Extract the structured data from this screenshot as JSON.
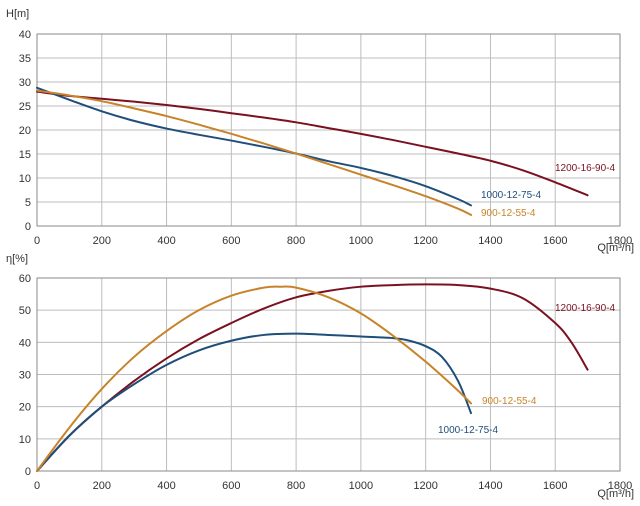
{
  "colors": {
    "1200-16-90-4": "#7a1020",
    "1000-12-75-4": "#1f4e79",
    "900-12-55-4": "#c8832a",
    "grid": "#bdbdbd"
  },
  "chart_data": [
    {
      "type": "line",
      "title": "",
      "xlabel": "Q[m³/h]",
      "ylabel": "H[m]",
      "xlim": [
        0,
        1800
      ],
      "ylim": [
        0,
        40
      ],
      "x_ticks": [
        "0",
        "200",
        "400",
        "600",
        "800",
        "1000",
        "1200",
        "1400",
        "1600",
        "1800"
      ],
      "y_ticks": [
        "0",
        "5",
        "10",
        "15",
        "20",
        "25",
        "30",
        "35",
        "40"
      ],
      "grid": true,
      "series": [
        {
          "name": "1200-16-90-4",
          "x": [
            0,
            100,
            200,
            300,
            400,
            500,
            600,
            700,
            800,
            900,
            1000,
            1100,
            1200,
            1300,
            1400,
            1500,
            1600,
            1700
          ],
          "y": [
            28.0,
            27.1,
            26.5,
            25.9,
            25.2,
            24.4,
            23.5,
            22.6,
            21.6,
            20.4,
            19.2,
            17.9,
            16.5,
            15.1,
            13.6,
            11.6,
            9.1,
            6.4
          ]
        },
        {
          "name": "1000-12-75-4",
          "x": [
            0,
            100,
            200,
            300,
            400,
            500,
            600,
            700,
            800,
            900,
            1000,
            1100,
            1200,
            1300,
            1340
          ],
          "y": [
            28.8,
            26.3,
            23.9,
            21.9,
            20.3,
            19.0,
            17.8,
            16.5,
            15.1,
            13.5,
            12.1,
            10.4,
            8.3,
            5.6,
            4.3
          ]
        },
        {
          "name": "900-12-55-4",
          "x": [
            0,
            100,
            200,
            300,
            400,
            500,
            600,
            700,
            800,
            900,
            1000,
            1100,
            1200,
            1300,
            1340
          ],
          "y": [
            28.2,
            27.2,
            26.0,
            24.5,
            22.9,
            21.1,
            19.2,
            17.2,
            15.1,
            12.9,
            10.7,
            8.5,
            6.2,
            3.6,
            2.3
          ]
        }
      ]
    },
    {
      "type": "line",
      "title": "",
      "xlabel": "Q[m³/h]",
      "ylabel": "η[%]",
      "xlim": [
        0,
        1800
      ],
      "ylim": [
        0,
        60
      ],
      "x_ticks": [
        "0",
        "200",
        "400",
        "600",
        "800",
        "1000",
        "1200",
        "1400",
        "1600",
        "1800"
      ],
      "y_ticks": [
        "0",
        "10",
        "20",
        "30",
        "40",
        "50",
        "60"
      ],
      "grid": true,
      "series": [
        {
          "name": "1200-16-90-4",
          "x": [
            0,
            100,
            200,
            300,
            400,
            500,
            600,
            700,
            800,
            900,
            1000,
            1100,
            1200,
            1300,
            1400,
            1500,
            1600,
            1650,
            1700
          ],
          "y": [
            0,
            11,
            20,
            28,
            35,
            41,
            46,
            50.5,
            54,
            56,
            57.3,
            57.8,
            58.0,
            57.8,
            56.7,
            53.7,
            46,
            40,
            31.5
          ]
        },
        {
          "name": "1000-12-75-4",
          "x": [
            0,
            100,
            200,
            300,
            400,
            500,
            600,
            700,
            800,
            900,
            1000,
            1100,
            1150,
            1200,
            1250,
            1300,
            1340
          ],
          "y": [
            0,
            11,
            20,
            27,
            33,
            37.5,
            40.5,
            42.3,
            42.7,
            42.3,
            41.8,
            41.3,
            40.5,
            38.8,
            35.5,
            28,
            18
          ]
        },
        {
          "name": "900-12-55-4",
          "x": [
            0,
            100,
            200,
            300,
            400,
            500,
            600,
            700,
            750,
            800,
            900,
            1000,
            1100,
            1200,
            1300,
            1340
          ],
          "y": [
            0,
            13.5,
            25.5,
            35.5,
            43.5,
            50,
            54.5,
            57,
            57.3,
            57,
            54,
            49,
            42,
            34,
            25,
            21
          ]
        }
      ]
    }
  ]
}
